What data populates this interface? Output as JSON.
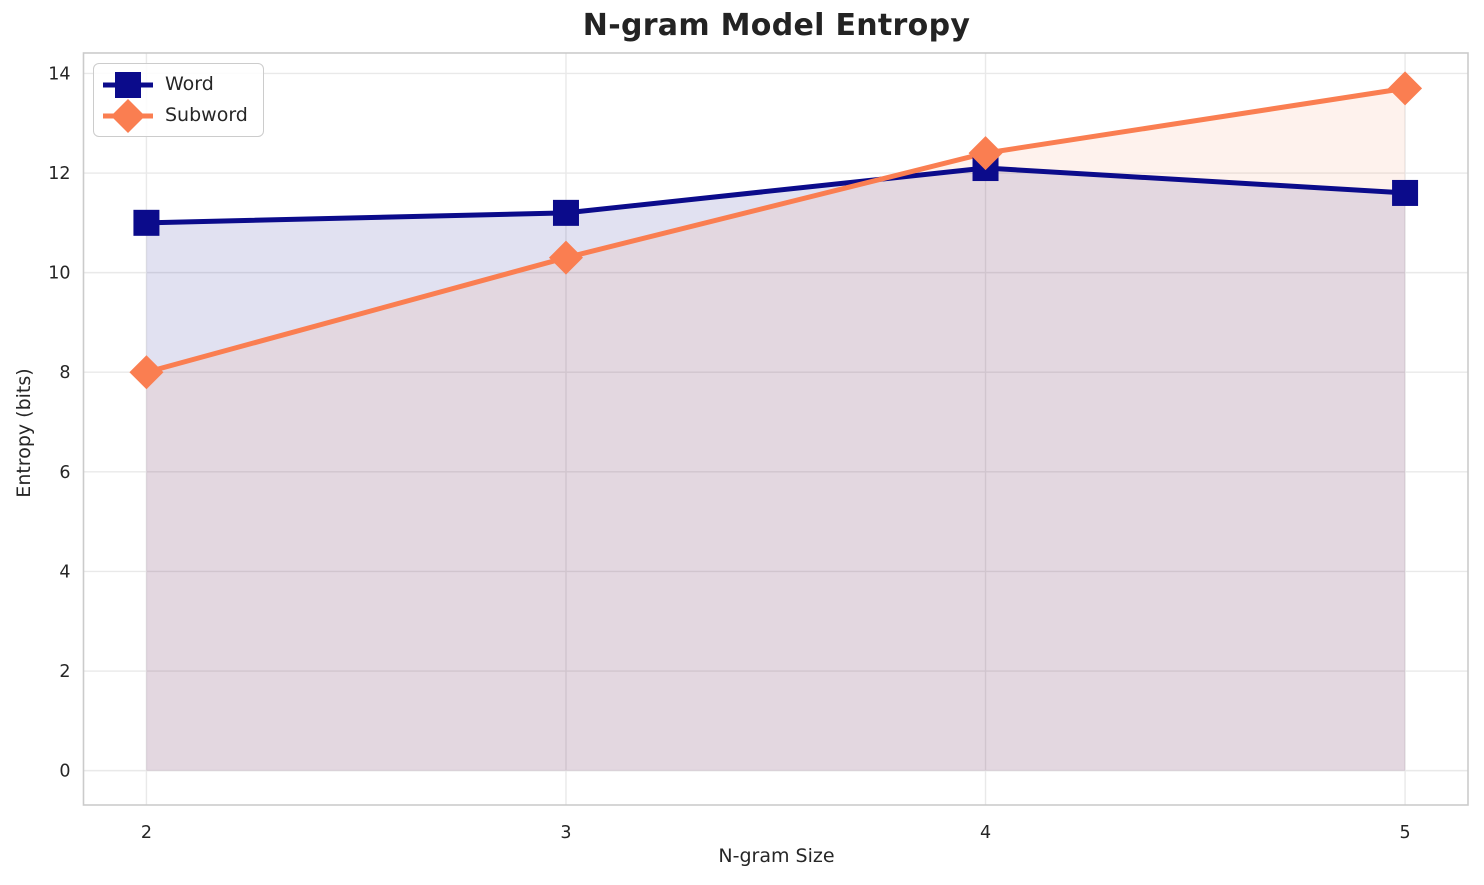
{
  "chart_data": {
    "type": "line",
    "title": "N-gram Model Entropy",
    "xlabel": "N-gram Size",
    "ylabel": "Entropy (bits)",
    "x": [
      2,
      3,
      4,
      5
    ],
    "series": [
      {
        "name": "Word",
        "values": [
          11.0,
          11.2,
          12.1,
          11.6
        ],
        "color": "#0b0b8b",
        "marker": "square",
        "fill_opacity": 0.12
      },
      {
        "name": "Subword",
        "values": [
          8.0,
          10.3,
          12.4,
          13.7
        ],
        "color": "#fa7e51",
        "marker": "diamond",
        "fill_opacity": 0.1
      }
    ],
    "xticks": [
      2,
      3,
      4,
      5
    ],
    "yticks": [
      0,
      2,
      4,
      6,
      8,
      10,
      12,
      14
    ],
    "xlim": [
      1.85,
      5.15
    ],
    "ylim": [
      -0.69,
      14.41
    ],
    "grid": true,
    "area_fill_to_zero": true,
    "legend_position": "upper left",
    "grid_color": "#e9e9e9",
    "spine_color": "#cbcbcb",
    "tick_color": "#262626",
    "title_color": "#232323"
  }
}
